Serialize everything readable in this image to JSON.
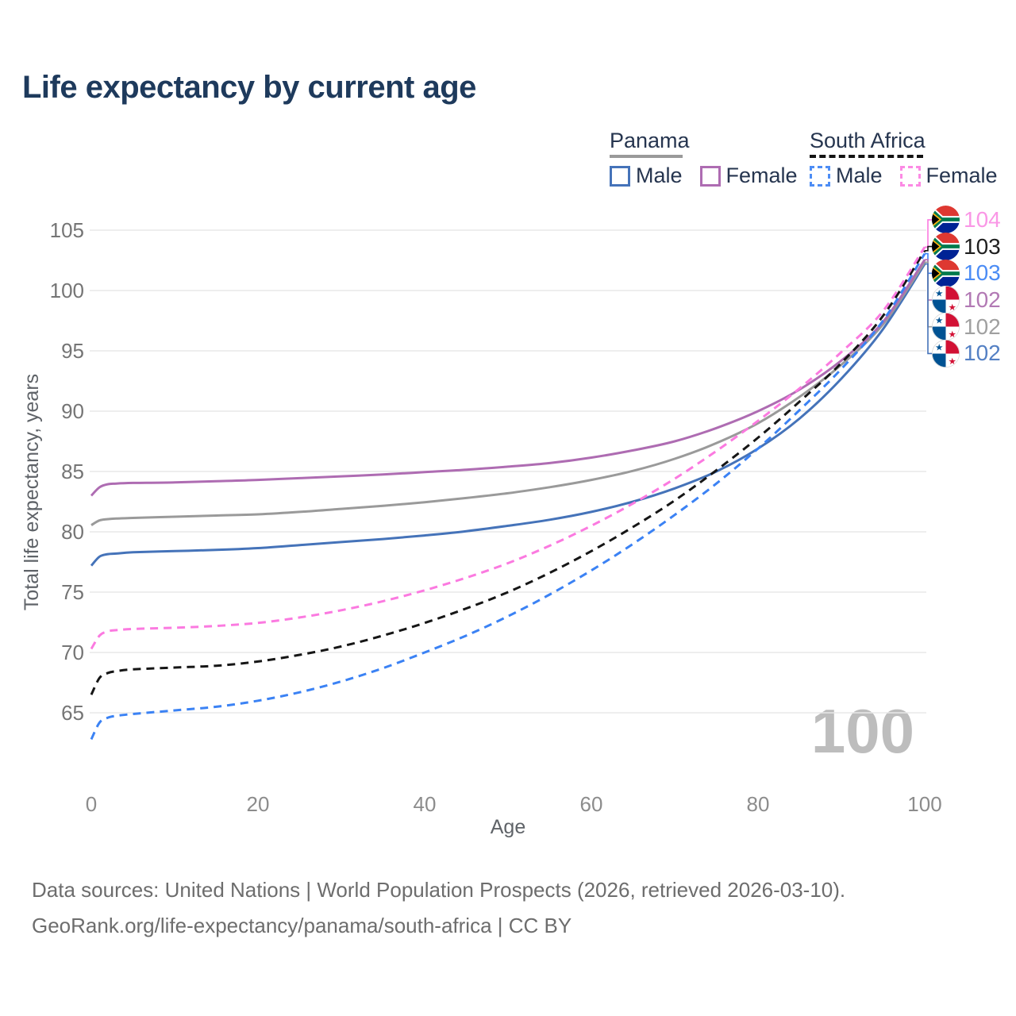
{
  "title": "Life expectancy by current age",
  "legend": {
    "groups": [
      {
        "name": "Panama",
        "line": {
          "color": "#9a9a9a",
          "dash": false
        },
        "items": [
          {
            "label": "Male",
            "color": "#4573b9",
            "dash": false
          },
          {
            "label": "Female",
            "color": "#ae6cb2",
            "dash": false
          }
        ]
      },
      {
        "name": "South Africa",
        "line": {
          "color": "#141414",
          "dash": true
        },
        "items": [
          {
            "label": "Male",
            "color": "#4d8df5",
            "dash": true
          },
          {
            "label": "Female",
            "color": "#fc8ae4",
            "dash": true
          }
        ]
      }
    ]
  },
  "chart_data": {
    "type": "line",
    "title": "Life expectancy by current age",
    "xlabel": "Age",
    "ylabel": "Total life expectancy, years",
    "xlim": [
      0,
      100
    ],
    "ylim": [
      62,
      105.5
    ],
    "xticks": [
      0,
      20,
      40,
      60,
      80,
      100
    ],
    "yticks": [
      65,
      70,
      75,
      80,
      85,
      90,
      95,
      100,
      105
    ],
    "grid": "horizontal-only",
    "age_cursor": "100",
    "colors": {
      "gridline": "#e8e8e8",
      "tick_label": "#757575",
      "axis_title": "#5f6368",
      "watermark": "#bdbdbd"
    },
    "series": [
      {
        "name": "Panama Male",
        "country": "Panama",
        "sex": "Male",
        "color": "#4573b9",
        "dash": false,
        "points": [
          [
            0,
            77.2
          ],
          [
            1,
            77.95
          ],
          [
            2,
            78.15
          ],
          [
            3,
            78.2
          ],
          [
            5,
            78.3
          ],
          [
            10,
            78.4
          ],
          [
            15,
            78.5
          ],
          [
            20,
            78.65
          ],
          [
            25,
            78.9
          ],
          [
            30,
            79.15
          ],
          [
            35,
            79.4
          ],
          [
            40,
            79.7
          ],
          [
            45,
            80.05
          ],
          [
            50,
            80.5
          ],
          [
            55,
            81.0
          ],
          [
            60,
            81.65
          ],
          [
            65,
            82.5
          ],
          [
            70,
            83.6
          ],
          [
            75,
            85.0
          ],
          [
            80,
            86.9
          ],
          [
            85,
            89.4
          ],
          [
            90,
            92.7
          ],
          [
            95,
            96.8
          ],
          [
            100,
            102.2
          ]
        ]
      },
      {
        "name": "Panama Both sexes",
        "country": "Panama",
        "sex": "Both",
        "color": "#9a9a9a",
        "dash": false,
        "points": [
          [
            0,
            80.55
          ],
          [
            1,
            80.95
          ],
          [
            2,
            81.05
          ],
          [
            3,
            81.1
          ],
          [
            5,
            81.15
          ],
          [
            10,
            81.25
          ],
          [
            15,
            81.35
          ],
          [
            20,
            81.45
          ],
          [
            25,
            81.65
          ],
          [
            30,
            81.9
          ],
          [
            35,
            82.15
          ],
          [
            40,
            82.45
          ],
          [
            45,
            82.8
          ],
          [
            50,
            83.2
          ],
          [
            55,
            83.7
          ],
          [
            60,
            84.3
          ],
          [
            65,
            85.05
          ],
          [
            70,
            86.05
          ],
          [
            75,
            87.35
          ],
          [
            80,
            89.0
          ],
          [
            85,
            91.2
          ],
          [
            90,
            93.85
          ],
          [
            95,
            97.2
          ],
          [
            100,
            102.35
          ]
        ]
      },
      {
        "name": "Panama Female",
        "country": "Panama",
        "sex": "Female",
        "color": "#ae6cb2",
        "dash": false,
        "points": [
          [
            0,
            83.0
          ],
          [
            1,
            83.7
          ],
          [
            2,
            83.95
          ],
          [
            3,
            84.0
          ],
          [
            5,
            84.05
          ],
          [
            10,
            84.1
          ],
          [
            15,
            84.2
          ],
          [
            20,
            84.3
          ],
          [
            25,
            84.45
          ],
          [
            30,
            84.6
          ],
          [
            35,
            84.75
          ],
          [
            40,
            84.95
          ],
          [
            45,
            85.15
          ],
          [
            50,
            85.4
          ],
          [
            55,
            85.7
          ],
          [
            60,
            86.15
          ],
          [
            65,
            86.75
          ],
          [
            70,
            87.5
          ],
          [
            75,
            88.6
          ],
          [
            80,
            90.0
          ],
          [
            85,
            91.8
          ],
          [
            90,
            94.2
          ],
          [
            95,
            97.4
          ],
          [
            100,
            102.55
          ]
        ]
      },
      {
        "name": "South Africa Male",
        "country": "South Africa",
        "sex": "Male",
        "color": "#3b82f4",
        "dash": true,
        "points": [
          [
            0,
            62.8
          ],
          [
            1,
            64.2
          ],
          [
            2,
            64.6
          ],
          [
            3,
            64.75
          ],
          [
            5,
            64.9
          ],
          [
            10,
            65.2
          ],
          [
            15,
            65.5
          ],
          [
            20,
            66.0
          ],
          [
            25,
            66.7
          ],
          [
            30,
            67.6
          ],
          [
            35,
            68.7
          ],
          [
            40,
            70.0
          ],
          [
            45,
            71.4
          ],
          [
            50,
            73.0
          ],
          [
            55,
            74.8
          ],
          [
            60,
            76.8
          ],
          [
            65,
            79.0
          ],
          [
            70,
            81.4
          ],
          [
            75,
            84.0
          ],
          [
            80,
            86.9
          ],
          [
            85,
            90.1
          ],
          [
            90,
            93.5
          ],
          [
            95,
            97.5
          ],
          [
            100,
            103.05
          ]
        ]
      },
      {
        "name": "South Africa Both sexes",
        "country": "South Africa",
        "sex": "Both",
        "color": "#161616",
        "dash": true,
        "points": [
          [
            0,
            66.5
          ],
          [
            1,
            67.9
          ],
          [
            2,
            68.3
          ],
          [
            3,
            68.45
          ],
          [
            5,
            68.6
          ],
          [
            10,
            68.75
          ],
          [
            15,
            68.9
          ],
          [
            20,
            69.25
          ],
          [
            25,
            69.8
          ],
          [
            30,
            70.5
          ],
          [
            35,
            71.4
          ],
          [
            40,
            72.45
          ],
          [
            45,
            73.65
          ],
          [
            50,
            75.0
          ],
          [
            55,
            76.6
          ],
          [
            60,
            78.4
          ],
          [
            65,
            80.4
          ],
          [
            70,
            82.6
          ],
          [
            75,
            85.1
          ],
          [
            80,
            87.8
          ],
          [
            85,
            90.8
          ],
          [
            90,
            94.0
          ],
          [
            95,
            97.9
          ],
          [
            100,
            103.3
          ]
        ]
      },
      {
        "name": "South Africa Female",
        "country": "South Africa",
        "sex": "Female",
        "color": "#fb7ae0",
        "dash": true,
        "points": [
          [
            0,
            70.3
          ],
          [
            1,
            71.4
          ],
          [
            2,
            71.75
          ],
          [
            3,
            71.85
          ],
          [
            5,
            71.95
          ],
          [
            10,
            72.05
          ],
          [
            15,
            72.2
          ],
          [
            20,
            72.45
          ],
          [
            25,
            72.9
          ],
          [
            30,
            73.5
          ],
          [
            35,
            74.25
          ],
          [
            40,
            75.15
          ],
          [
            45,
            76.2
          ],
          [
            50,
            77.4
          ],
          [
            55,
            78.85
          ],
          [
            60,
            80.5
          ],
          [
            65,
            82.35
          ],
          [
            70,
            84.4
          ],
          [
            75,
            86.7
          ],
          [
            80,
            89.2
          ],
          [
            85,
            91.9
          ],
          [
            90,
            94.9
          ],
          [
            95,
            98.3
          ],
          [
            100,
            103.6
          ]
        ]
      }
    ]
  },
  "end_labels": [
    {
      "value": "104",
      "color": "#fa97e6",
      "flag": "south-africa",
      "series": "South Africa Female"
    },
    {
      "value": "103",
      "color": "#1f1f1f",
      "flag": "south-africa",
      "series": "South Africa Both sexes"
    },
    {
      "value": "103",
      "color": "#4b8cf5",
      "flag": "south-africa",
      "series": "South Africa Male"
    },
    {
      "value": "102",
      "color": "#b279b4",
      "flag": "panama",
      "series": "Panama Female"
    },
    {
      "value": "102",
      "color": "#a0a0a0",
      "flag": "panama",
      "series": "Panama Both sexes"
    },
    {
      "value": "102",
      "color": "#5480c4",
      "flag": "panama",
      "series": "Panama Male"
    }
  ],
  "footer": {
    "line1": "Data sources: United Nations | World Population Prospects (2026, retrieved 2026-03-10).",
    "line2": "GeoRank.org/life-expectancy/panama/south-africa | CC BY"
  }
}
